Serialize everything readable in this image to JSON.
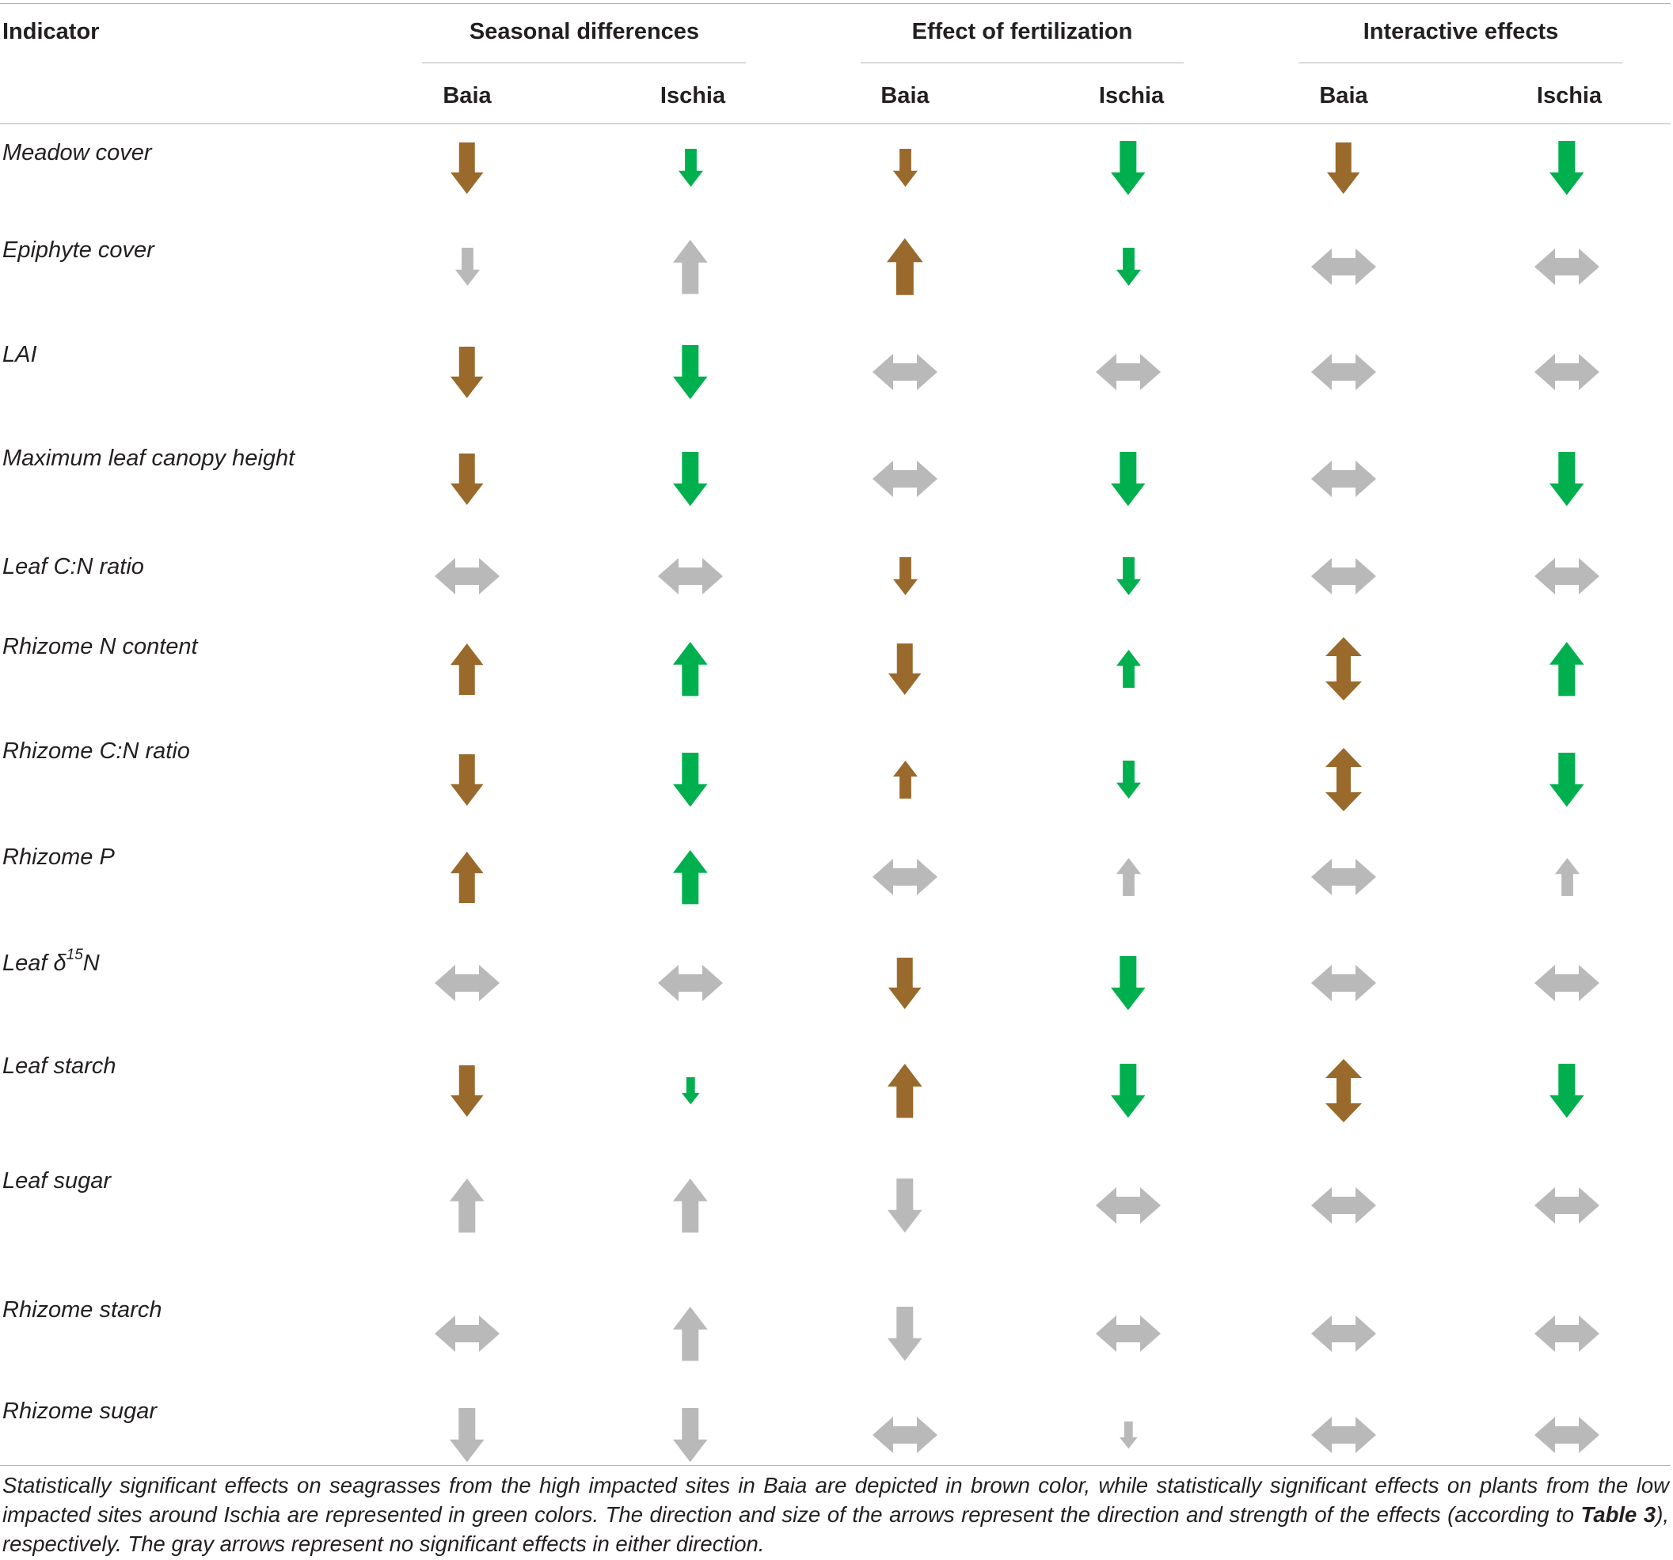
{
  "header": {
    "indicator_label": "Indicator",
    "groups": [
      {
        "label": "Seasonal differences",
        "sites": [
          "Baia",
          "Ischia"
        ]
      },
      {
        "label": "Effect of fertilization",
        "sites": [
          "Baia",
          "Ischia"
        ]
      },
      {
        "label": "Interactive effects",
        "sites": [
          "Baia",
          "Ischia"
        ]
      }
    ]
  },
  "colors": {
    "brown": "#996a2c",
    "green": "#00b04e",
    "gray": "#b9b9b9"
  },
  "rows": [
    {
      "indicator": "Meadow cover",
      "arrows": [
        {
          "dir": "down",
          "color": "brown",
          "strength": 0.75
        },
        {
          "dir": "down",
          "color": "green",
          "strength": 0.5
        },
        {
          "dir": "down",
          "color": "brown",
          "strength": 0.5
        },
        {
          "dir": "down",
          "color": "green",
          "strength": 0.8
        },
        {
          "dir": "down",
          "color": "brown",
          "strength": 0.75
        },
        {
          "dir": "down",
          "color": "green",
          "strength": 0.8
        }
      ]
    },
    {
      "indicator": "Epiphyte cover",
      "arrows": [
        {
          "dir": "down",
          "color": "gray",
          "strength": 0.5
        },
        {
          "dir": "up",
          "color": "gray",
          "strength": 0.8
        },
        {
          "dir": "up",
          "color": "brown",
          "strength": 0.85
        },
        {
          "dir": "down",
          "color": "green",
          "strength": 0.5
        },
        {
          "dir": "both-h",
          "color": "gray",
          "strength": 0.8
        },
        {
          "dir": "both-h",
          "color": "gray",
          "strength": 0.8
        }
      ]
    },
    {
      "indicator": "LAI",
      "arrows": [
        {
          "dir": "down",
          "color": "brown",
          "strength": 0.75
        },
        {
          "dir": "down",
          "color": "green",
          "strength": 0.8
        },
        {
          "dir": "both-h",
          "color": "gray",
          "strength": 0.8
        },
        {
          "dir": "both-h",
          "color": "gray",
          "strength": 0.8
        },
        {
          "dir": "both-h",
          "color": "gray",
          "strength": 0.8
        },
        {
          "dir": "both-h",
          "color": "gray",
          "strength": 0.8
        }
      ]
    },
    {
      "indicator": "Maximum leaf canopy height",
      "arrows": [
        {
          "dir": "down",
          "color": "brown",
          "strength": 0.75
        },
        {
          "dir": "down",
          "color": "green",
          "strength": 0.8
        },
        {
          "dir": "both-h",
          "color": "gray",
          "strength": 0.8
        },
        {
          "dir": "down",
          "color": "green",
          "strength": 0.8
        },
        {
          "dir": "both-h",
          "color": "gray",
          "strength": 0.8
        },
        {
          "dir": "down",
          "color": "green",
          "strength": 0.8
        }
      ]
    },
    {
      "indicator": "Leaf C:N ratio",
      "arrows": [
        {
          "dir": "both-h",
          "color": "gray",
          "strength": 0.8
        },
        {
          "dir": "both-h",
          "color": "gray",
          "strength": 0.8
        },
        {
          "dir": "down",
          "color": "brown",
          "strength": 0.5
        },
        {
          "dir": "down",
          "color": "green",
          "strength": 0.5
        },
        {
          "dir": "both-h",
          "color": "gray",
          "strength": 0.8
        },
        {
          "dir": "both-h",
          "color": "gray",
          "strength": 0.8
        }
      ]
    },
    {
      "indicator": "Rhizome N content",
      "arrows": [
        {
          "dir": "up",
          "color": "brown",
          "strength": 0.75
        },
        {
          "dir": "up",
          "color": "green",
          "strength": 0.8
        },
        {
          "dir": "down",
          "color": "brown",
          "strength": 0.75
        },
        {
          "dir": "up",
          "color": "green",
          "strength": 0.5
        },
        {
          "dir": "both-v",
          "color": "brown",
          "strength": 0.75
        },
        {
          "dir": "up",
          "color": "green",
          "strength": 0.8
        }
      ]
    },
    {
      "indicator": "Rhizome C:N ratio",
      "arrows": [
        {
          "dir": "down",
          "color": "brown",
          "strength": 0.75
        },
        {
          "dir": "down",
          "color": "green",
          "strength": 0.8
        },
        {
          "dir": "up",
          "color": "brown",
          "strength": 0.5
        },
        {
          "dir": "down",
          "color": "green",
          "strength": 0.5
        },
        {
          "dir": "both-v",
          "color": "brown",
          "strength": 0.75
        },
        {
          "dir": "down",
          "color": "green",
          "strength": 0.8
        }
      ]
    },
    {
      "indicator": "Rhizome P",
      "arrows": [
        {
          "dir": "up",
          "color": "brown",
          "strength": 0.75
        },
        {
          "dir": "up",
          "color": "green",
          "strength": 0.8
        },
        {
          "dir": "both-h",
          "color": "gray",
          "strength": 0.8
        },
        {
          "dir": "up",
          "color": "gray",
          "strength": 0.5
        },
        {
          "dir": "both-h",
          "color": "gray",
          "strength": 0.8
        },
        {
          "dir": "up",
          "color": "gray",
          "strength": 0.5
        }
      ]
    },
    {
      "indicator_prefix": "Leaf δ",
      "indicator_sup": "15",
      "indicator_suffix": "N",
      "arrows": [
        {
          "dir": "both-h",
          "color": "gray",
          "strength": 0.8
        },
        {
          "dir": "both-h",
          "color": "gray",
          "strength": 0.8
        },
        {
          "dir": "down",
          "color": "brown",
          "strength": 0.75
        },
        {
          "dir": "down",
          "color": "green",
          "strength": 0.8
        },
        {
          "dir": "both-h",
          "color": "gray",
          "strength": 0.8
        },
        {
          "dir": "both-h",
          "color": "gray",
          "strength": 0.8
        }
      ]
    },
    {
      "indicator": "Leaf starch",
      "arrows": [
        {
          "dir": "down",
          "color": "brown",
          "strength": 0.75
        },
        {
          "dir": "down",
          "color": "green",
          "strength": 0.3
        },
        {
          "dir": "up",
          "color": "brown",
          "strength": 0.8
        },
        {
          "dir": "down",
          "color": "green",
          "strength": 0.8
        },
        {
          "dir": "both-v",
          "color": "brown",
          "strength": 0.75
        },
        {
          "dir": "down",
          "color": "green",
          "strength": 0.8
        }
      ]
    },
    {
      "indicator": "Leaf sugar",
      "arrows": [
        {
          "dir": "up",
          "color": "gray",
          "strength": 0.8
        },
        {
          "dir": "up",
          "color": "gray",
          "strength": 0.8
        },
        {
          "dir": "down",
          "color": "gray",
          "strength": 0.8
        },
        {
          "dir": "both-h",
          "color": "gray",
          "strength": 0.8
        },
        {
          "dir": "both-h",
          "color": "gray",
          "strength": 0.8
        },
        {
          "dir": "both-h",
          "color": "gray",
          "strength": 0.8
        }
      ]
    },
    {
      "indicator": "Rhizome starch",
      "arrows": [
        {
          "dir": "both-h",
          "color": "gray",
          "strength": 0.8
        },
        {
          "dir": "up",
          "color": "gray",
          "strength": 0.8
        },
        {
          "dir": "down",
          "color": "gray",
          "strength": 0.8
        },
        {
          "dir": "both-h",
          "color": "gray",
          "strength": 0.8
        },
        {
          "dir": "both-h",
          "color": "gray",
          "strength": 0.8
        },
        {
          "dir": "both-h",
          "color": "gray",
          "strength": 0.8
        }
      ]
    },
    {
      "indicator": "Rhizome sugar",
      "arrows": [
        {
          "dir": "down",
          "color": "gray",
          "strength": 0.8
        },
        {
          "dir": "down",
          "color": "gray",
          "strength": 0.8
        },
        {
          "dir": "both-h",
          "color": "gray",
          "strength": 0.8
        },
        {
          "dir": "down",
          "color": "gray",
          "strength": 0.3
        },
        {
          "dir": "both-h",
          "color": "gray",
          "strength": 0.8
        },
        {
          "dir": "both-h",
          "color": "gray",
          "strength": 0.8
        }
      ]
    }
  ],
  "caption": {
    "before": "Statistically significant effects on seagrasses from the high impacted sites in Baia are depicted in brown color, while statistically significant effects on plants from the low impacted sites around Ischia are represented in green colors. The direction and size of the arrows represent the direction and strength of the effects (according to ",
    "bold": "Table 3",
    "after": "), respectively. The gray arrows represent no significant effects in either direction."
  }
}
